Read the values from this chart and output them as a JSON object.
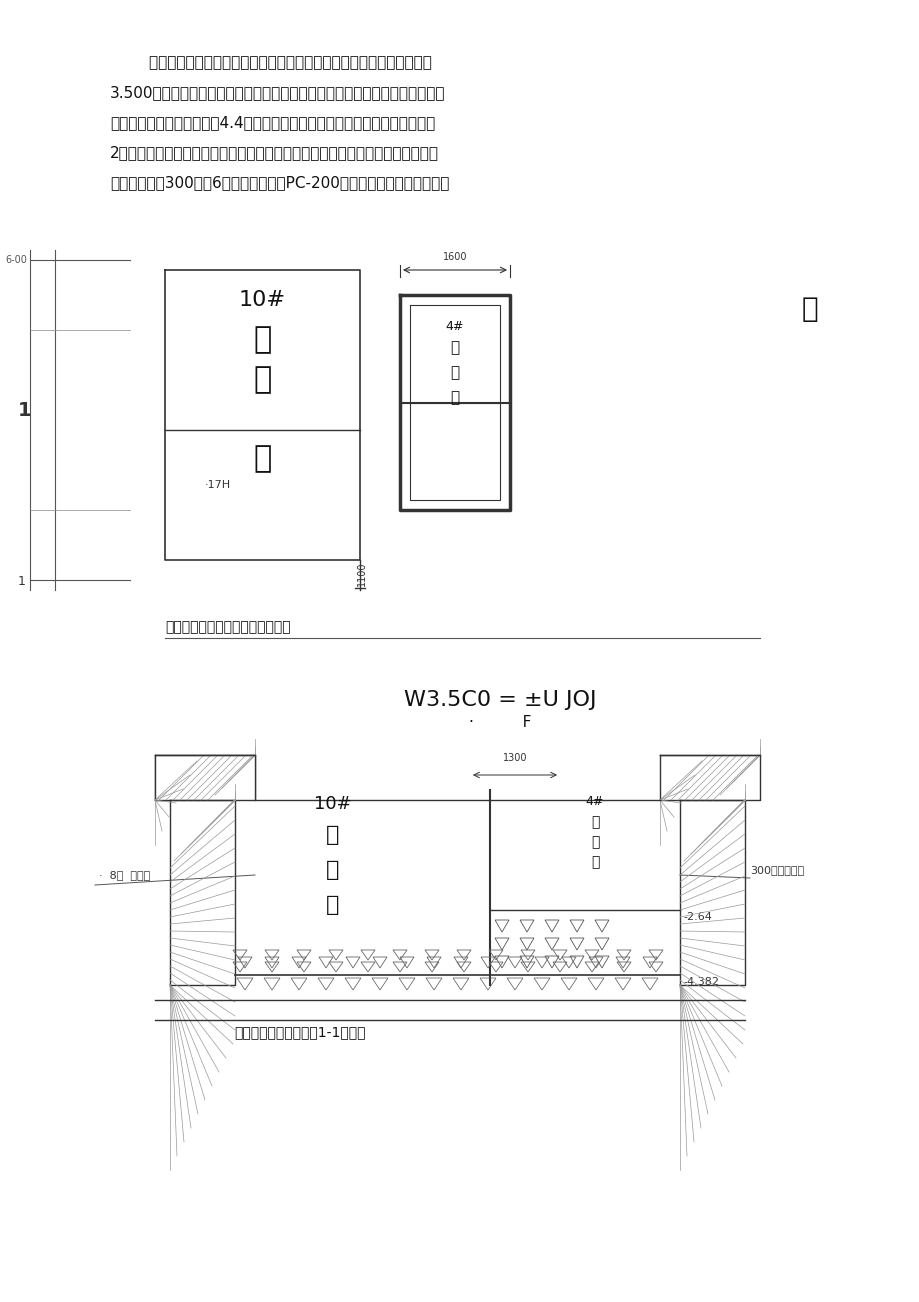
{
  "bg_color": "#ffffff",
  "text_color": "#000000",
  "paragraph_text": "根据实地测量以及图纸设计标高确定，化粪池及隔油池顶盖标高为黄海\n3.500，均参照图集有地下水、有覆土形式、顶面不可过汽车；由于基坑开挖深\n度从自然场地标高往下挖为4.4米左右，现场土质疏松、与幼儿园基础最近只有\n2米、并且是薄壁管桩基础比化粪池基坑浅；故基坑围护采用单排槽钢围护体系，\n围护桩采用宽300、长6米的槽钢、采用PC-200挖掘机开挖；具体详附图：",
  "caption1": "化粪池基坑钢板支护桩平面布置图",
  "caption2": "化粪池基坑钢板支护桩1-1剖面图",
  "label_w35c0": "W3.5C0 = ±U JOJ",
  "label_f": "F",
  "label_dot": "·",
  "label_youjiu": "幼",
  "label_10hua": "10#\n化\n粪\n池",
  "label_geiyouchi": "4#\n隔\n油\n池",
  "label_1": "1",
  "label_1600": "1600",
  "label_1100": "1100",
  "label_1300_top": "1300",
  "label_geiyouchi2": "4#\n隔\n油\n池",
  "label_10hua2": "10#\n化\n粪\n池",
  "label_300kuan": "300宽、钢板桩",
  "label_left_kuan": "·  8宽  钢板桩",
  "label_264": "-2.64",
  "label_4382": "-4.382",
  "label_17H": "·17H"
}
